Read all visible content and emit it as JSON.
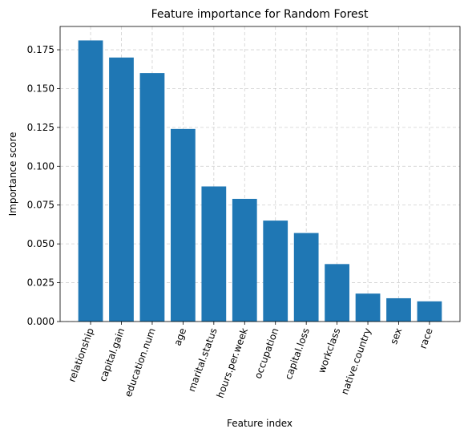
{
  "chart_data": {
    "type": "bar",
    "title": "Feature importance for Random Forest",
    "x_label": "Feature index",
    "y_label": "Importance score",
    "categories": [
      "relationship",
      "capital.gain",
      "education.num",
      "age",
      "marital.status",
      "hours.per.week",
      "occupation",
      "capital.loss",
      "workclass",
      "native.country",
      "sex",
      "race"
    ],
    "values": [
      0.181,
      0.17,
      0.16,
      0.124,
      0.087,
      0.079,
      0.065,
      0.057,
      0.037,
      0.018,
      0.015,
      0.013
    ],
    "color": "#1f77b4",
    "ylim": [
      0,
      0.19
    ],
    "yticks": [
      {
        "value": 0,
        "label": "0.000"
      },
      {
        "value": 0.025,
        "label": "0.025"
      },
      {
        "value": 0.05,
        "label": "0.050"
      },
      {
        "value": 0.075,
        "label": "0.075"
      },
      {
        "value": 0.1,
        "label": "0.100"
      },
      {
        "value": 0.125,
        "label": "0.125"
      },
      {
        "value": 0.15,
        "label": "0.150"
      },
      {
        "value": 0.175,
        "label": "0.175"
      }
    ],
    "grid": true
  }
}
